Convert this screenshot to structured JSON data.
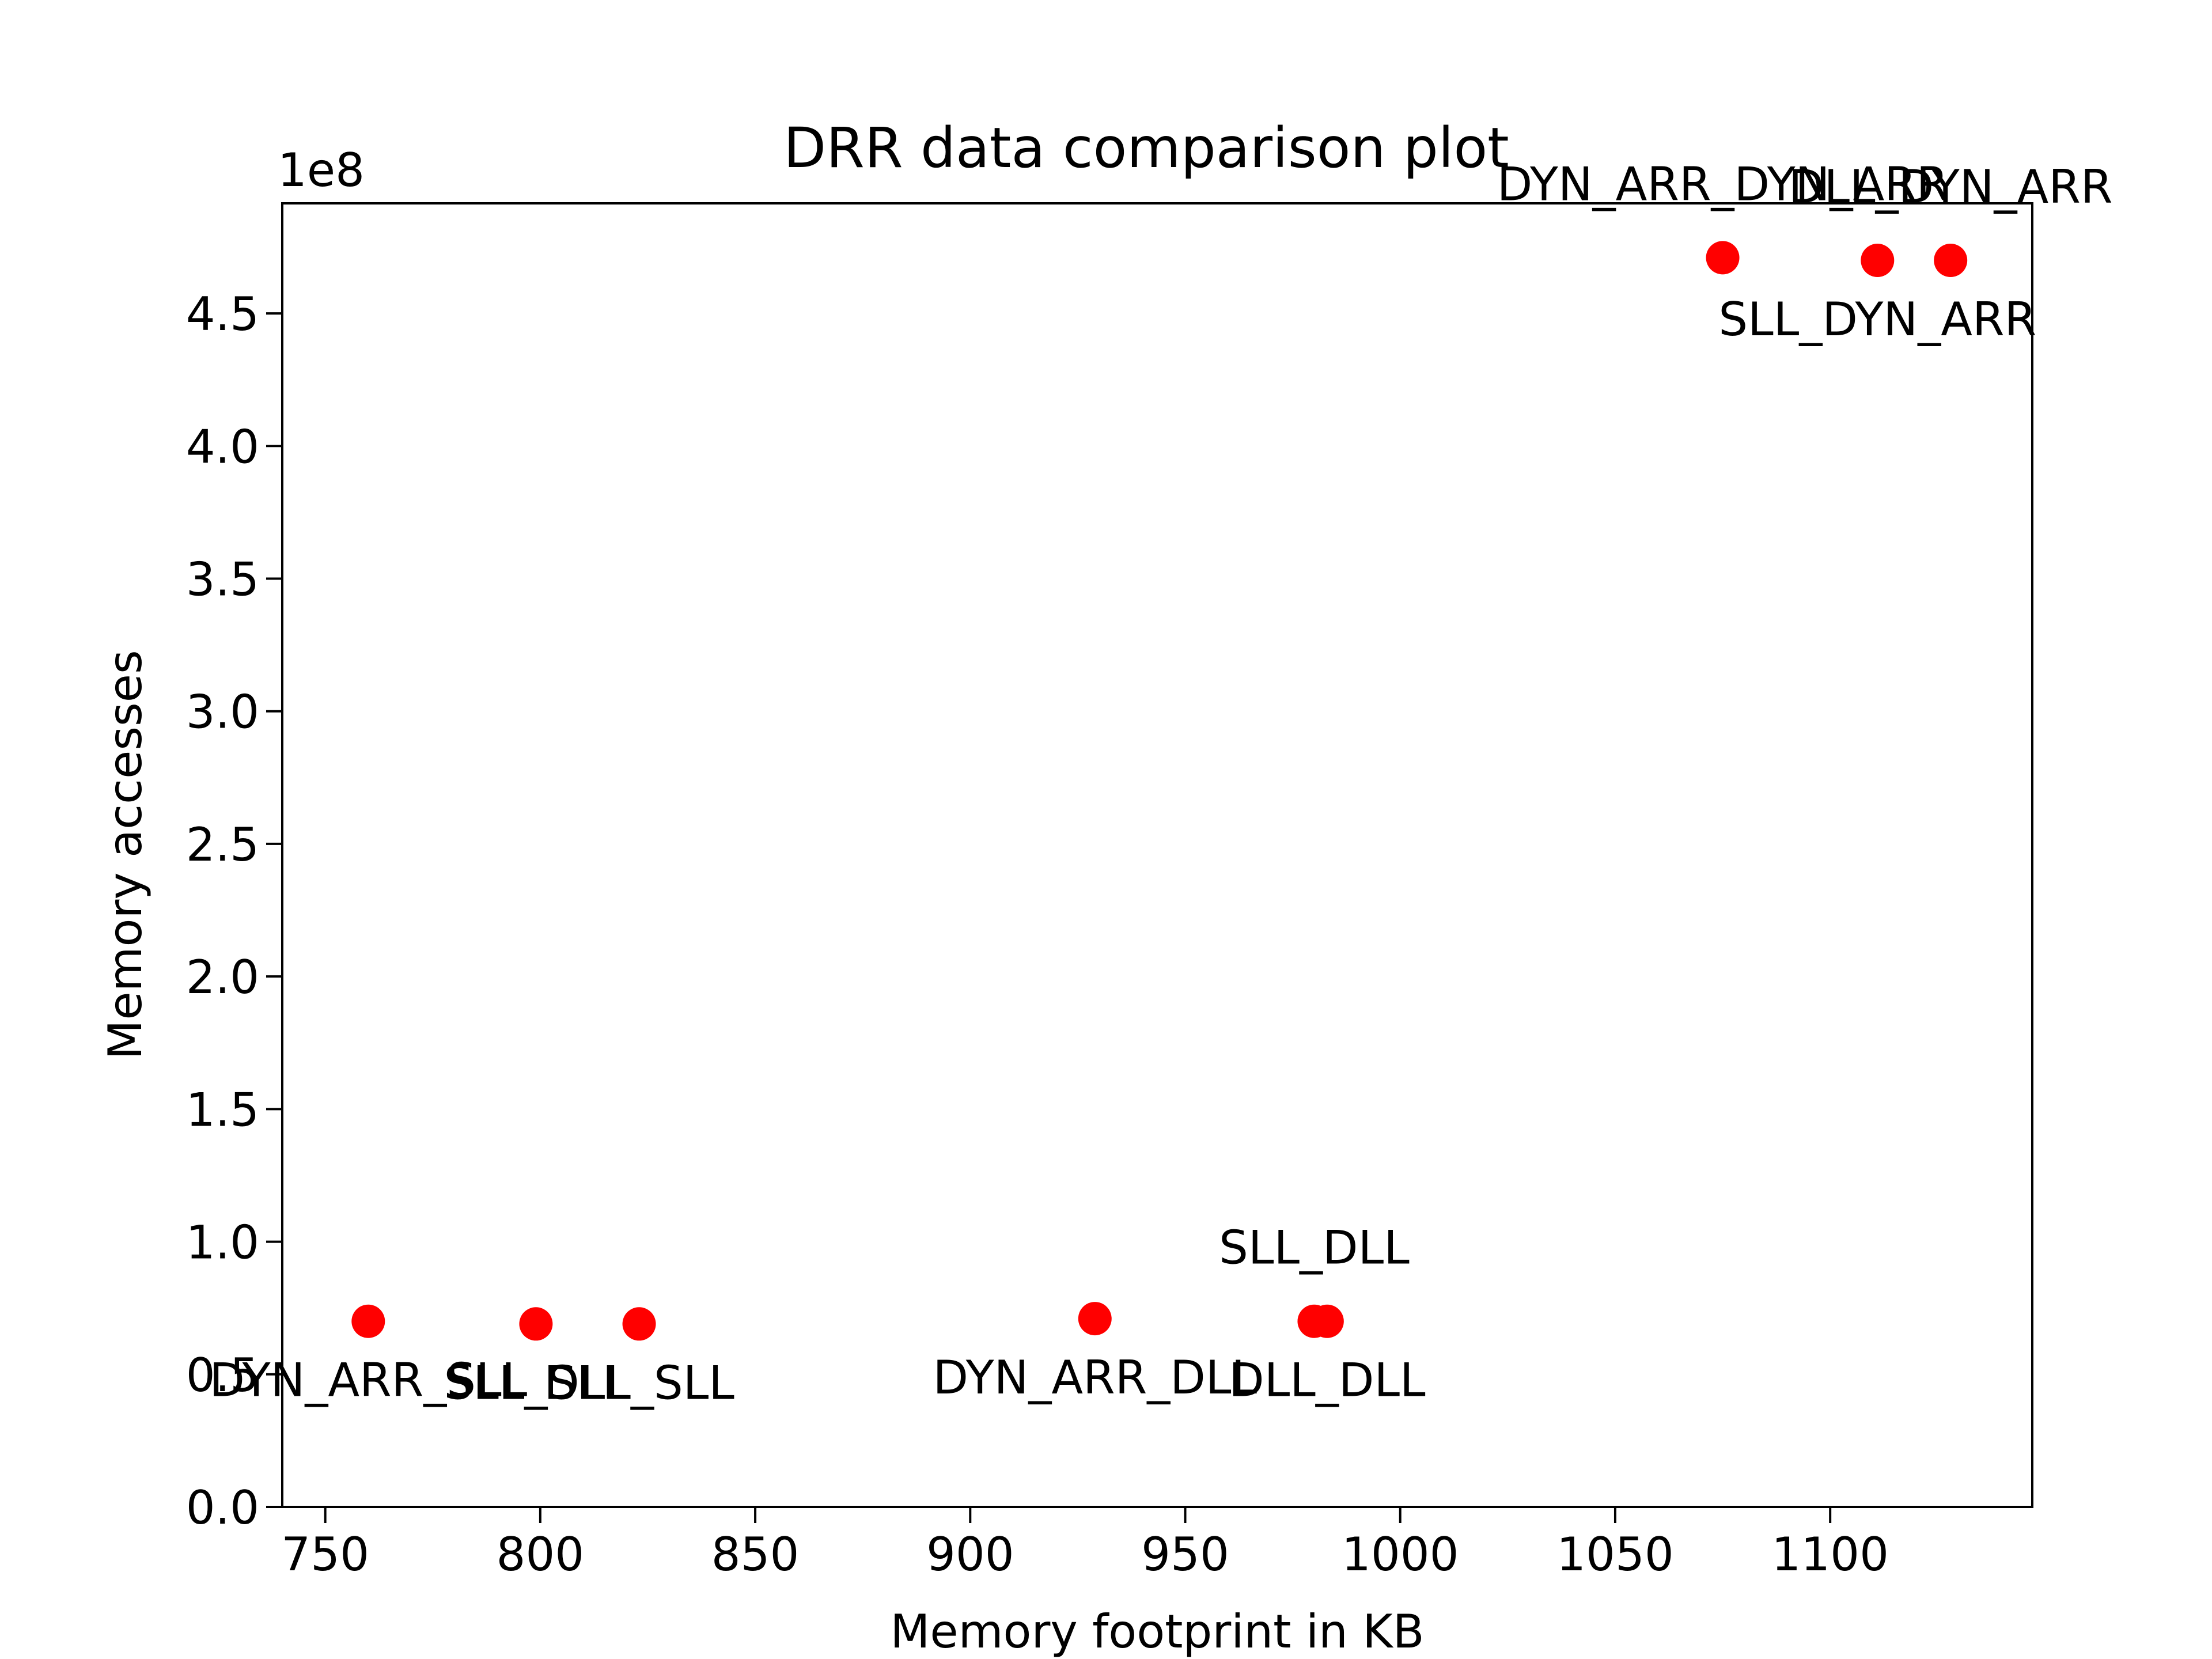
{
  "chart_data": {
    "type": "scatter",
    "title": "DRR data comparison plot",
    "xlabel": "Memory footprint in KB",
    "ylabel": "Memory accesses",
    "y_offset_label": "1e8",
    "xlim": [
      740,
      1147
    ],
    "ylim": [
      0.0,
      4.915
    ],
    "x_ticks": [
      750,
      800,
      850,
      900,
      950,
      1000,
      1050,
      1100
    ],
    "x_tick_labels": [
      "750",
      "800",
      "850",
      "900",
      "950",
      "1000",
      "1050",
      "1100"
    ],
    "y_ticks": [
      0.0,
      0.5,
      1.0,
      1.5,
      2.0,
      2.5,
      3.0,
      3.5,
      4.0,
      4.5
    ],
    "y_tick_labels": [
      "0.0",
      "0.5",
      "1.0",
      "1.5",
      "2.0",
      "2.5",
      "3.0",
      "3.5",
      "4.0",
      "4.5"
    ],
    "y_scale_note": "values are in units of 1e8",
    "grid": false,
    "marker_color": "#ff0000",
    "points": [
      {
        "x": 760,
        "y": 0.7,
        "label": "DYN_ARR_SLL",
        "label_pos": "below"
      },
      {
        "x": 799,
        "y": 0.69,
        "label": "SLL_SLL",
        "label_pos": "below"
      },
      {
        "x": 823,
        "y": 0.69,
        "label": "DLL_SLL",
        "label_pos": "below"
      },
      {
        "x": 929,
        "y": 0.71,
        "label": "DYN_ARR_DLL",
        "label_pos": "below"
      },
      {
        "x": 980,
        "y": 0.7,
        "label": "SLL_DLL",
        "label_pos": "above"
      },
      {
        "x": 983,
        "y": 0.7,
        "label": "DLL_DLL",
        "label_pos": "below"
      },
      {
        "x": 1075,
        "y": 4.71,
        "label": "DYN_ARR_DYN_ARR",
        "label_pos": "above"
      },
      {
        "x": 1111,
        "y": 4.7,
        "label": "SLL_DYN_ARR",
        "label_pos": "below"
      },
      {
        "x": 1128,
        "y": 4.7,
        "label": "DLL_DYN_ARR",
        "label_pos": "above"
      }
    ]
  }
}
